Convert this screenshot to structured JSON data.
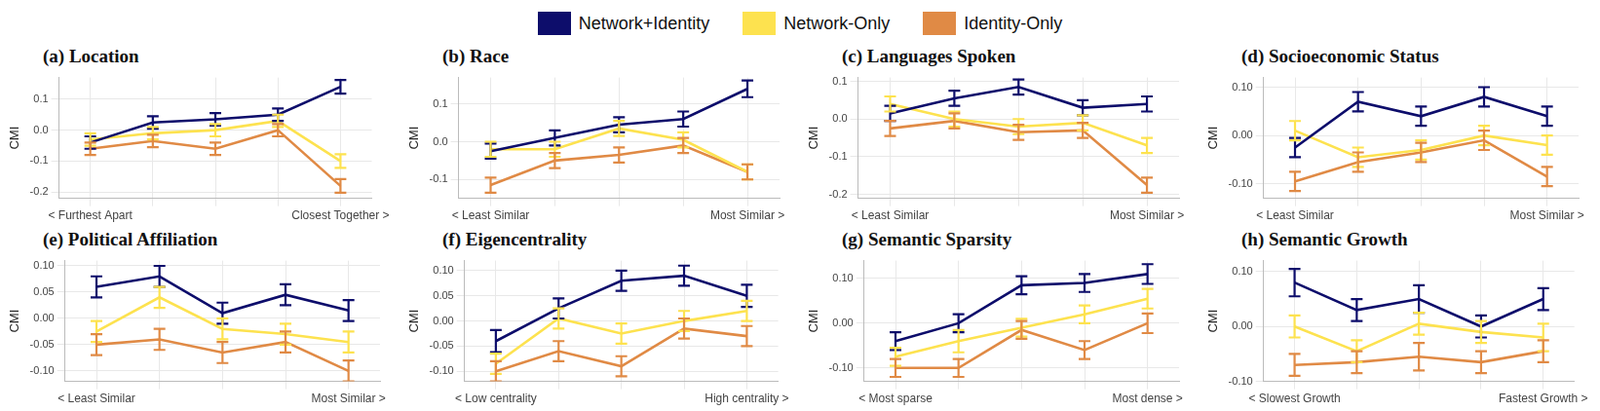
{
  "chart_data": [
    {
      "type": "line",
      "title": "(a) Location",
      "y_label": "CMI",
      "legend": "top",
      "grid": true,
      "categories": [
        "< Furthest Apart",
        null,
        null,
        null,
        "Closest Together >"
      ],
      "ylim": [
        -0.22,
        0.17
      ],
      "yticks": [
        -0.2,
        -0.1,
        {
          "value": 0,
          "label": "0.0"
        },
        0.1
      ],
      "series": [
        {
          "name": "Network+Identity",
          "color": "#0d0d6b",
          "values": [
            -0.04,
            0.025,
            0.035,
            0.05,
            0.14
          ],
          "errors": [
            0.02,
            0.02,
            0.02,
            0.02,
            0.022
          ]
        },
        {
          "name": "Network-Only",
          "color": "#fde24f",
          "values": [
            -0.03,
            -0.01,
            0.0,
            0.03,
            -0.1
          ],
          "errors": [
            0.02,
            0.02,
            0.02,
            0.02,
            0.022
          ]
        },
        {
          "name": "Identity-Only",
          "color": "#e08a45",
          "values": [
            -0.06,
            -0.035,
            -0.06,
            0.0,
            -0.18
          ],
          "errors": [
            0.02,
            0.02,
            0.02,
            0.02,
            0.022
          ]
        }
      ]
    },
    {
      "type": "line",
      "title": "(b) Race",
      "y_label": "CMI",
      "grid": true,
      "categories": [
        "< Least Similar",
        null,
        null,
        null,
        "Most Similar >"
      ],
      "ylim": [
        -0.15,
        0.17
      ],
      "yticks": [
        -0.1,
        {
          "value": 0,
          "label": "0.0"
        },
        0.1
      ],
      "series": [
        {
          "name": "Network+Identity",
          "color": "#0d0d6b",
          "values": [
            -0.025,
            0.01,
            0.045,
            0.06,
            0.14
          ],
          "errors": [
            0.02,
            0.02,
            0.02,
            0.02,
            0.022
          ]
        },
        {
          "name": "Network-Only",
          "color": "#fde24f",
          "values": [
            -0.02,
            -0.02,
            0.035,
            0.005,
            -0.08
          ],
          "errors": [
            0.02,
            0.02,
            0.02,
            0.02,
            0.02
          ]
        },
        {
          "name": "Identity-Only",
          "color": "#e08a45",
          "values": [
            -0.115,
            -0.05,
            -0.035,
            -0.01,
            -0.08
          ],
          "errors": [
            0.02,
            0.02,
            0.02,
            0.02,
            0.02
          ]
        }
      ]
    },
    {
      "type": "line",
      "title": "(c) Languages Spoken",
      "y_label": "CMI",
      "grid": true,
      "categories": [
        "< Least Similar",
        null,
        null,
        null,
        "Most Similar >"
      ],
      "ylim": [
        -0.21,
        0.11
      ],
      "yticks": [
        -0.2,
        -0.1,
        {
          "value": 0,
          "label": "0.0"
        },
        0.1
      ],
      "series": [
        {
          "name": "Network+Identity",
          "color": "#0d0d6b",
          "values": [
            0.015,
            0.055,
            0.085,
            0.03,
            0.04
          ],
          "errors": [
            0.02,
            0.02,
            0.02,
            0.02,
            0.02
          ]
        },
        {
          "name": "Network-Only",
          "color": "#fde24f",
          "values": [
            0.04,
            0.0,
            -0.02,
            -0.01,
            -0.07
          ],
          "errors": [
            0.02,
            0.02,
            0.02,
            0.02,
            0.02
          ]
        },
        {
          "name": "Identity-Only",
          "color": "#e08a45",
          "values": [
            -0.025,
            -0.005,
            -0.035,
            -0.03,
            -0.175
          ],
          "errors": [
            0.02,
            0.02,
            0.02,
            0.02,
            0.02
          ]
        }
      ]
    },
    {
      "type": "line",
      "title": "(d) Socioeconomic Status",
      "y_label": "CMI",
      "grid": true,
      "categories": [
        "< Least Similar",
        null,
        null,
        null,
        "Most Similar >"
      ],
      "ylim": [
        -0.13,
        0.12
      ],
      "yticks": [
        {
          "value": -0.1,
          "label": "-0.10"
        },
        {
          "value": 0,
          "label": "0.00"
        },
        {
          "value": 0.1,
          "label": "0.10"
        }
      ],
      "series": [
        {
          "name": "Network+Identity",
          "color": "#0d0d6b",
          "values": [
            -0.025,
            0.07,
            0.04,
            0.08,
            0.04
          ],
          "errors": [
            0.02,
            0.02,
            0.02,
            0.02,
            0.02
          ]
        },
        {
          "name": "Network-Only",
          "color": "#fde24f",
          "values": [
            0.01,
            -0.045,
            -0.03,
            0.0,
            -0.02
          ],
          "errors": [
            0.02,
            0.02,
            0.02,
            0.02,
            0.02
          ]
        },
        {
          "name": "Identity-Only",
          "color": "#e08a45",
          "values": [
            -0.095,
            -0.055,
            -0.035,
            -0.01,
            -0.085
          ],
          "errors": [
            0.02,
            0.02,
            0.02,
            0.02,
            0.02
          ]
        }
      ]
    },
    {
      "type": "line",
      "title": "(e) Political Affiliation",
      "y_label": "CMI",
      "grid": true,
      "categories": [
        "< Least Similar",
        null,
        null,
        null,
        "Most Similar >"
      ],
      "ylim": [
        -0.12,
        0.11
      ],
      "yticks": [
        {
          "value": -0.1,
          "label": "-0.10"
        },
        -0.05,
        {
          "value": 0,
          "label": "0.00"
        },
        0.05,
        {
          "value": 0.1,
          "label": "0.10"
        }
      ],
      "series": [
        {
          "name": "Network+Identity",
          "color": "#0d0d6b",
          "values": [
            0.06,
            0.08,
            0.01,
            0.045,
            0.015
          ],
          "errors": [
            0.02,
            0.02,
            0.02,
            0.02,
            0.02
          ]
        },
        {
          "name": "Network-Only",
          "color": "#fde24f",
          "values": [
            -0.025,
            0.04,
            -0.02,
            -0.03,
            -0.045
          ],
          "errors": [
            0.02,
            0.02,
            0.02,
            0.02,
            0.02
          ]
        },
        {
          "name": "Identity-Only",
          "color": "#e08a45",
          "values": [
            -0.05,
            -0.04,
            -0.065,
            -0.045,
            -0.1
          ],
          "errors": [
            0.02,
            0.02,
            0.02,
            0.02,
            0.02
          ]
        }
      ]
    },
    {
      "type": "line",
      "title": "(f) Eigencentrality",
      "y_label": "CMI",
      "grid": true,
      "categories": [
        "< Low centrality",
        null,
        null,
        null,
        "High centrality >"
      ],
      "ylim": [
        -0.12,
        0.12
      ],
      "yticks": [
        {
          "value": -0.1,
          "label": "-0.10"
        },
        -0.05,
        {
          "value": 0,
          "label": "0.00"
        },
        0.05,
        {
          "value": 0.1,
          "label": "0.10"
        }
      ],
      "series": [
        {
          "name": "Network+Identity",
          "color": "#0d0d6b",
          "values": [
            -0.04,
            0.025,
            0.08,
            0.09,
            0.05
          ],
          "errors": [
            0.022,
            0.02,
            0.02,
            0.02,
            0.022
          ]
        },
        {
          "name": "Network-Only",
          "color": "#fde24f",
          "values": [
            -0.085,
            0.005,
            -0.025,
            0.0,
            0.02
          ],
          "errors": [
            0.02,
            0.02,
            0.02,
            0.02,
            0.02
          ]
        },
        {
          "name": "Identity-Only",
          "color": "#e08a45",
          "values": [
            -0.1,
            -0.06,
            -0.09,
            -0.015,
            -0.03
          ],
          "errors": [
            0.02,
            0.02,
            0.02,
            0.02,
            0.02
          ]
        }
      ]
    },
    {
      "type": "line",
      "title": "(g) Semantic Sparsity",
      "y_label": "CMI",
      "grid": true,
      "categories": [
        "< Most sparse",
        null,
        null,
        null,
        "Most dense >"
      ],
      "ylim": [
        -0.13,
        0.14
      ],
      "yticks": [
        {
          "value": -0.1,
          "label": "-0.10"
        },
        {
          "value": 0,
          "label": "0.00"
        },
        {
          "value": 0.1,
          "label": "0.10"
        }
      ],
      "series": [
        {
          "name": "Network+Identity",
          "color": "#0d0d6b",
          "values": [
            -0.04,
            0.0,
            0.085,
            0.09,
            0.11
          ],
          "errors": [
            0.02,
            0.02,
            0.02,
            0.02,
            0.022
          ]
        },
        {
          "name": "Network-Only",
          "color": "#fde24f",
          "values": [
            -0.075,
            -0.04,
            -0.01,
            0.02,
            0.055
          ],
          "errors": [
            0.02,
            0.025,
            0.02,
            0.02,
            0.022
          ]
        },
        {
          "name": "Identity-Only",
          "color": "#e08a45",
          "values": [
            -0.1,
            -0.1,
            -0.015,
            -0.06,
            0.0
          ],
          "errors": [
            0.02,
            0.02,
            0.02,
            0.02,
            0.022
          ]
        }
      ]
    },
    {
      "type": "line",
      "title": "(h) Semantic Growth",
      "y_label": "CMI",
      "grid": true,
      "categories": [
        "< Slowest Growth",
        null,
        null,
        null,
        "Fastest Growth >"
      ],
      "ylim": [
        -0.1,
        0.12
      ],
      "yticks": [
        {
          "value": -0.1,
          "label": "-0.10"
        },
        {
          "value": 0,
          "label": "0.00"
        },
        {
          "value": 0.1,
          "label": "0.10"
        }
      ],
      "series": [
        {
          "name": "Network+Identity",
          "color": "#0d0d6b",
          "values": [
            0.08,
            0.03,
            0.05,
            0.0,
            0.05
          ],
          "errors": [
            0.025,
            0.02,
            0.025,
            0.02,
            0.02
          ]
        },
        {
          "name": "Network-Only",
          "color": "#fde24f",
          "values": [
            0.0,
            -0.045,
            0.005,
            -0.01,
            -0.02
          ],
          "errors": [
            0.02,
            0.02,
            0.02,
            0.02,
            0.025
          ]
        },
        {
          "name": "Identity-Only",
          "color": "#e08a45",
          "values": [
            -0.07,
            -0.065,
            -0.055,
            -0.065,
            -0.045
          ],
          "errors": [
            0.02,
            0.02,
            0.025,
            0.02,
            0.02
          ]
        }
      ]
    }
  ]
}
